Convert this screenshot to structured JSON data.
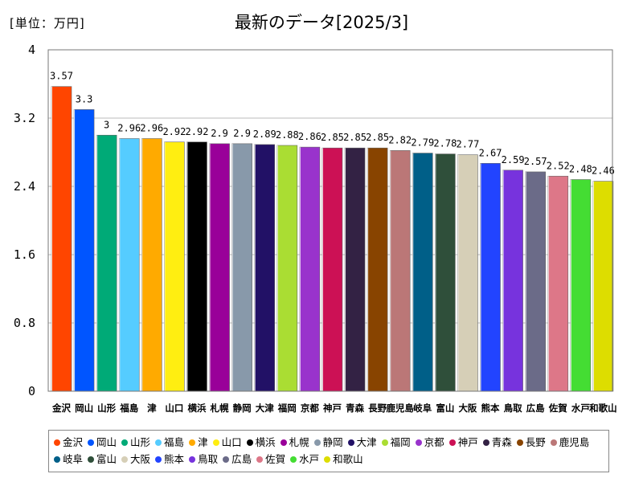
{
  "unit_label": "[単位：万円]",
  "chart_data": {
    "type": "bar",
    "title": "最新のデータ[2025/3]",
    "xlabel": "",
    "ylabel": "",
    "ylim": [
      0,
      4
    ],
    "yticks": [
      "0",
      "0.8",
      "1.6",
      "2.4",
      "3.2",
      "4"
    ],
    "ytick_values": [
      0,
      0.8,
      1.6,
      2.4,
      3.2,
      4
    ],
    "grid": true,
    "legend_position": "bottom",
    "categories": [
      "金沢",
      "岡山",
      "山形",
      "福島",
      "津",
      "山口",
      "横浜",
      "札幌",
      "静岡",
      "大津",
      "福岡",
      "京都",
      "神戸",
      "青森",
      "長野",
      "鹿児島",
      "岐阜",
      "富山",
      "大阪",
      "熊本",
      "鳥取",
      "広島",
      "佐賀",
      "水戸",
      "和歌山"
    ],
    "values": [
      3.57,
      3.3,
      3,
      2.96,
      2.96,
      2.92,
      2.92,
      2.9,
      2.9,
      2.89,
      2.88,
      2.86,
      2.85,
      2.85,
      2.85,
      2.82,
      2.79,
      2.78,
      2.77,
      2.67,
      2.59,
      2.57,
      2.52,
      2.48,
      2.46
    ],
    "value_labels": [
      "3.57",
      "3.3",
      "3",
      "2.96",
      "2.96",
      "2.92",
      "2.92",
      "2.9",
      "2.9",
      "2.89",
      "2.88",
      "2.86",
      "2.85",
      "2.85",
      "2.85",
      "2.82",
      "2.79",
      "2.78",
      "2.77",
      "2.67",
      "2.59",
      "2.57",
      "2.52",
      "2.48",
      "2.46"
    ],
    "colors": [
      "#ff4500",
      "#0055ff",
      "#00aa77",
      "#55ccff",
      "#ffaa00",
      "#ffee11",
      "#000000",
      "#990099",
      "#8899aa",
      "#221166",
      "#aadd33",
      "#9933cc",
      "#cc1155",
      "#332244",
      "#884400",
      "#bb7777",
      "#005f88",
      "#2f4f3a",
      "#d6cfb7",
      "#2244ff",
      "#7733dd",
      "#6b6b88",
      "#dd7788",
      "#44dd33",
      "#dddd00"
    ]
  }
}
